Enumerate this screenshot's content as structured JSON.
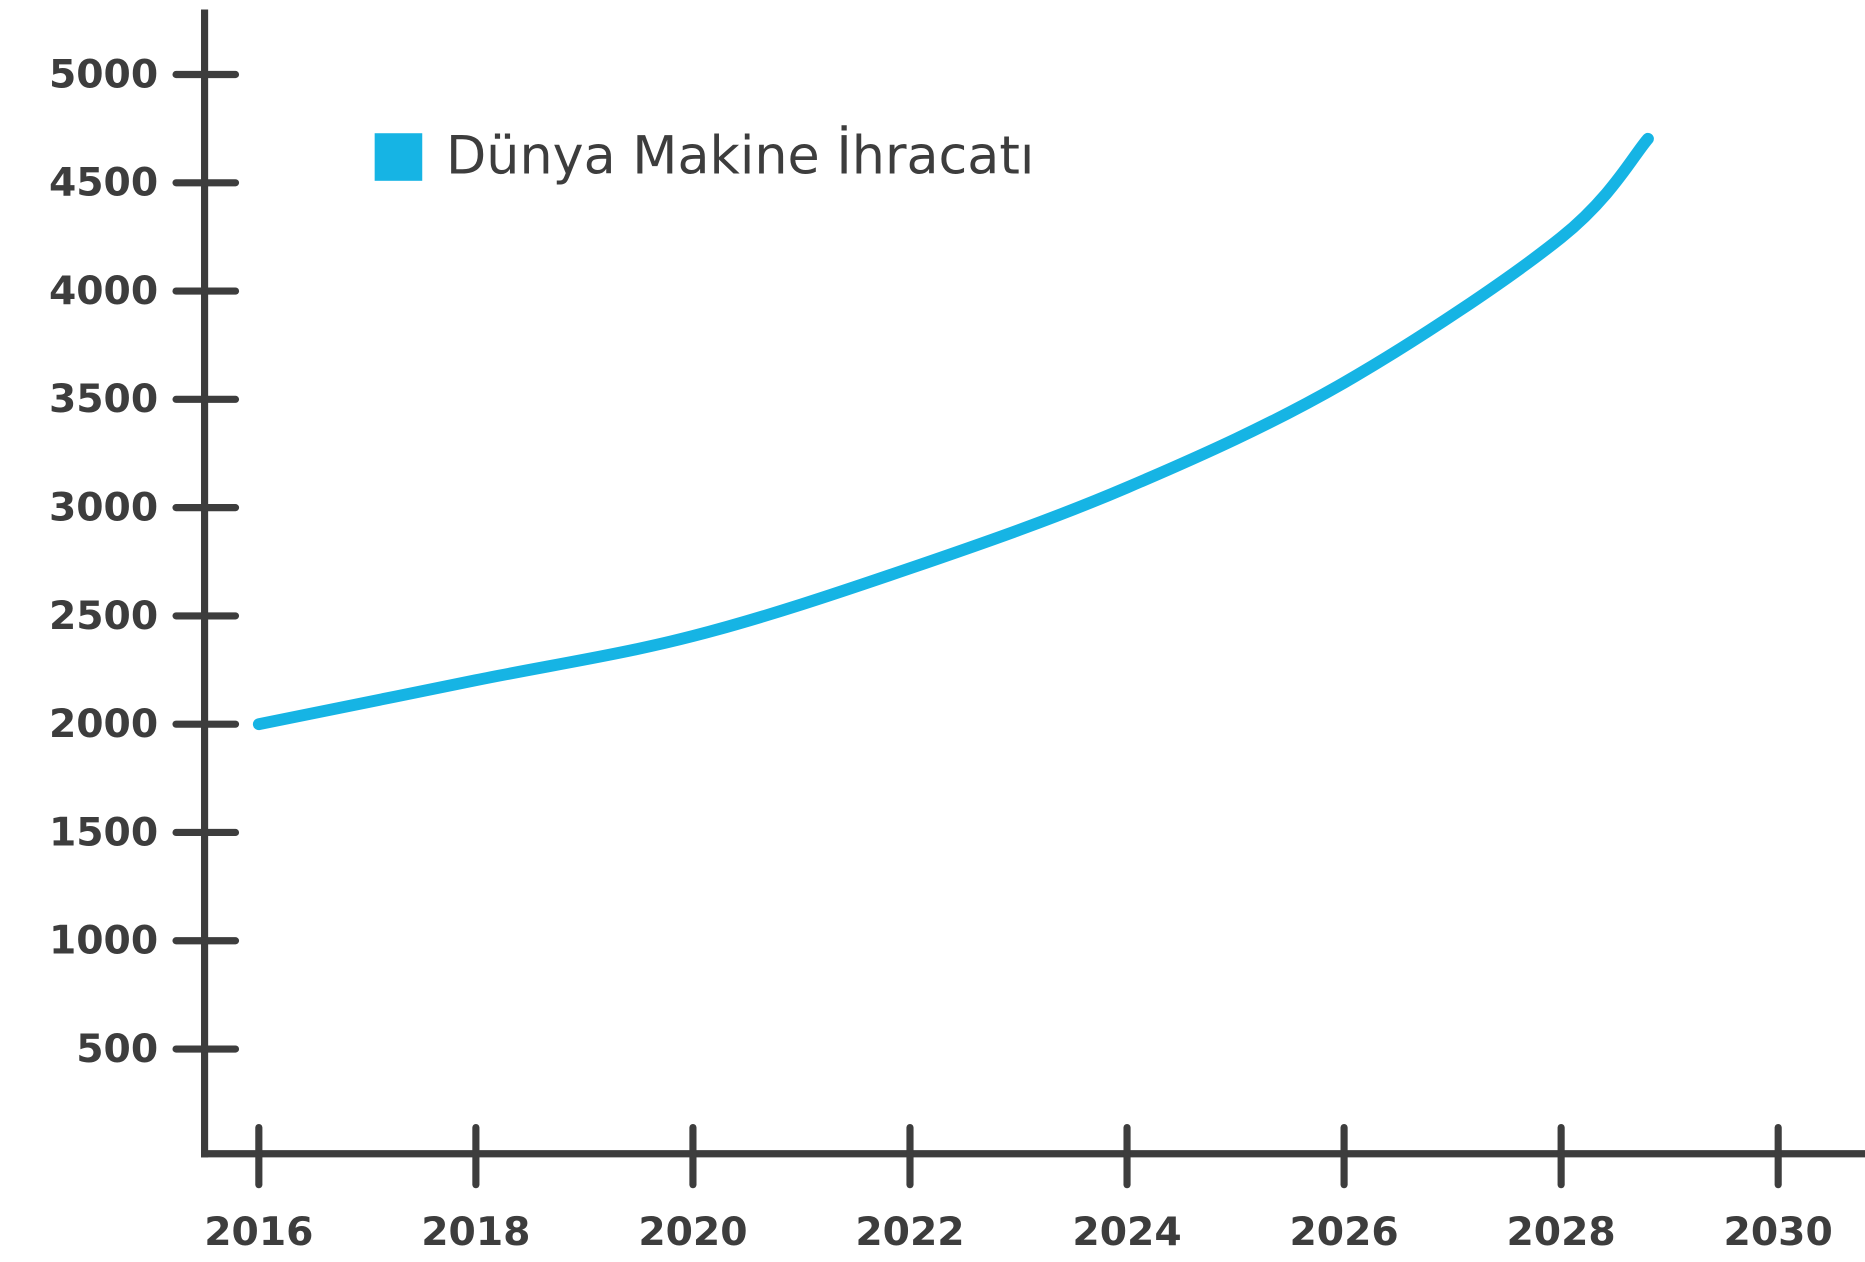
{
  "chart_data": {
    "type": "line",
    "x": [
      2016,
      2018,
      2020,
      2022,
      2024,
      2026,
      2028,
      2028.8
    ],
    "series": [
      {
        "name": "Dünya Makine İhracatı",
        "color": "#16b4e4",
        "values": [
          2000,
          2203,
          2407,
          2720,
          3093,
          3577,
          4247,
          4703
        ]
      }
    ],
    "xlim": [
      2015.5,
      2030.8
    ],
    "xticks": [
      2016,
      2018,
      2020,
      2022,
      2024,
      2026,
      2028,
      2030
    ],
    "ylim": [
      0,
      5300
    ],
    "yticks": [
      500,
      1000,
      1500,
      2000,
      2500,
      3000,
      3500,
      4000,
      4500,
      5000
    ],
    "legend": "upper left"
  }
}
